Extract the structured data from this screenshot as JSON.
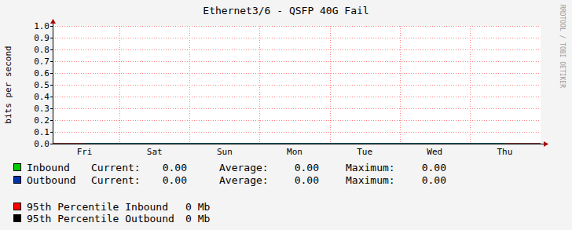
{
  "chart_data": {
    "type": "line",
    "title": "Ethernet3/6 - QSFP 40G Fail",
    "y_label": "bits per second",
    "watermark": "RRDTOOL / TOBI OETIKER",
    "categories": [
      "Fri",
      "Sat",
      "Sun",
      "Mon",
      "Tue",
      "Wed",
      "Thu"
    ],
    "ylim": [
      0,
      1
    ],
    "yticks": [
      {
        "value": 0,
        "label": "0.0"
      },
      {
        "value": 0.1,
        "label": "0.1"
      },
      {
        "value": 0.2,
        "label": "0.2"
      },
      {
        "value": 0.3,
        "label": "0.3"
      },
      {
        "value": 0.4,
        "label": "0.4"
      },
      {
        "value": 0.5,
        "label": "0.5"
      },
      {
        "value": 0.6,
        "label": "0.6"
      },
      {
        "value": 0.7,
        "label": "0.7"
      },
      {
        "value": 0.8,
        "label": "0.8"
      },
      {
        "value": 0.9,
        "label": "0.9"
      },
      {
        "value": 1,
        "label": "1.0"
      }
    ],
    "grid": true,
    "series": [
      {
        "name": "Inbound",
        "color": "#00cc00",
        "values": [
          0,
          0,
          0,
          0,
          0,
          0,
          0
        ],
        "stats": [
          {
            "label": "Current:",
            "value": 0,
            "value_label": "0.00"
          },
          {
            "label": "Average:",
            "value": 0,
            "value_label": "0.00"
          },
          {
            "label": "Maximum:",
            "value": 0,
            "value_label": "0.00"
          }
        ]
      },
      {
        "name": "Outbound",
        "color": "#0033aa",
        "values": [
          0,
          0,
          0,
          0,
          0,
          0,
          0
        ],
        "stats": [
          {
            "label": "Current:",
            "value": 0,
            "value_label": "0.00"
          },
          {
            "label": "Average:",
            "value": 0,
            "value_label": "0.00"
          },
          {
            "label": "Maximum:",
            "value": 0,
            "value_label": "0.00"
          }
        ]
      }
    ],
    "percentiles": [
      {
        "name": "95th Percentile Inbound",
        "color": "#ff0000",
        "value": 0,
        "value_label": "0 Mb"
      },
      {
        "name": "95th Percentile Outbound",
        "color": "#000000",
        "value": 0,
        "value_label": "0 Mb"
      }
    ]
  }
}
